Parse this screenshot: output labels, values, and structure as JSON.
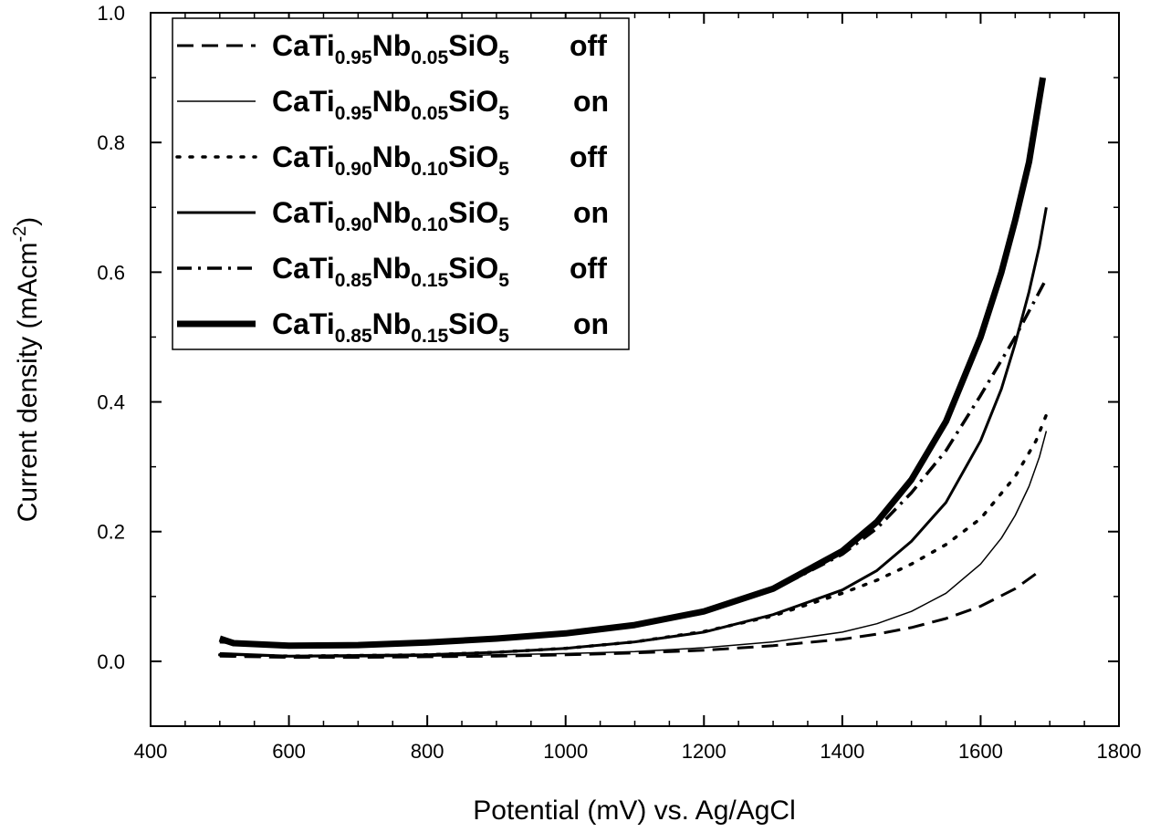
{
  "chart_data": {
    "type": "line",
    "xlabel": "Potential (mV) vs. Ag/AgCl",
    "ylabel": "Current density (mAcm",
    "ylabel_sup": "-2",
    "ylabel_close": ")",
    "xlim": [
      400,
      1800
    ],
    "ylim": [
      -0.1,
      1.0
    ],
    "xticks": [
      400,
      600,
      800,
      1000,
      1200,
      1400,
      1600,
      1800
    ],
    "yticks": [
      0.0,
      0.2,
      0.4,
      0.6,
      0.8,
      1.0
    ],
    "xtick_labels": [
      "400",
      "600",
      "800",
      "1000",
      "1200",
      "1400",
      "1600",
      "1800"
    ],
    "ytick_labels": [
      "0.0",
      "0.2",
      "0.4",
      "0.6",
      "0.8",
      "1.0"
    ],
    "grid": false,
    "legend_position": "top-left",
    "series": [
      {
        "name": "CaTi0.95Nb0.05SiO5 off",
        "legend": {
          "t1": "CaTi",
          "s1": "0.95",
          "t2": "Nb",
          "s2": "0.05",
          "t3": "SiO",
          "s3": "5",
          "state": "off"
        },
        "style": "dashed",
        "width": 3,
        "x": [
          500,
          600,
          700,
          800,
          900,
          1000,
          1100,
          1200,
          1300,
          1400,
          1450,
          1500,
          1550,
          1600,
          1650,
          1680
        ],
        "y": [
          0.008,
          0.006,
          0.006,
          0.007,
          0.008,
          0.01,
          0.013,
          0.017,
          0.024,
          0.034,
          0.042,
          0.052,
          0.066,
          0.085,
          0.112,
          0.135
        ]
      },
      {
        "name": "CaTi0.95Nb0.05SiO5 on",
        "legend": {
          "t1": "CaTi",
          "s1": "0.95",
          "t2": "Nb",
          "s2": "0.05",
          "t3": "SiO",
          "s3": "5",
          "state": "on"
        },
        "style": "solid",
        "width": 1.5,
        "x": [
          500,
          600,
          700,
          800,
          900,
          1000,
          1100,
          1200,
          1300,
          1400,
          1450,
          1500,
          1550,
          1600,
          1630,
          1650,
          1670,
          1685,
          1695
        ],
        "y": [
          0.01,
          0.007,
          0.007,
          0.008,
          0.01,
          0.012,
          0.015,
          0.021,
          0.03,
          0.045,
          0.058,
          0.077,
          0.105,
          0.15,
          0.19,
          0.225,
          0.27,
          0.315,
          0.355
        ]
      },
      {
        "name": "CaTi0.90Nb0.10SiO5 off",
        "legend": {
          "t1": "CaTi",
          "s1": "0.90",
          "t2": "Nb",
          "s2": "0.10",
          "t3": "SiO",
          "s3": "5",
          "state": "off"
        },
        "style": "dotted",
        "width": 3.5,
        "x": [
          500,
          600,
          700,
          800,
          900,
          1000,
          1100,
          1200,
          1300,
          1400,
          1450,
          1500,
          1550,
          1600,
          1650,
          1680,
          1695
        ],
        "y": [
          0.01,
          0.008,
          0.009,
          0.01,
          0.014,
          0.02,
          0.03,
          0.046,
          0.07,
          0.105,
          0.125,
          0.15,
          0.18,
          0.22,
          0.285,
          0.34,
          0.38
        ]
      },
      {
        "name": "CaTi0.90Nb0.10SiO5 on",
        "legend": {
          "t1": "CaTi",
          "s1": "0.90",
          "t2": "Nb",
          "s2": "0.10",
          "t3": "SiO",
          "s3": "5",
          "state": "on"
        },
        "style": "solid",
        "width": 3,
        "x": [
          500,
          600,
          700,
          800,
          900,
          1000,
          1100,
          1200,
          1300,
          1400,
          1450,
          1500,
          1550,
          1600,
          1630,
          1650,
          1670,
          1685,
          1695
        ],
        "y": [
          0.012,
          0.008,
          0.009,
          0.01,
          0.014,
          0.02,
          0.03,
          0.045,
          0.072,
          0.11,
          0.14,
          0.185,
          0.245,
          0.34,
          0.42,
          0.49,
          0.57,
          0.64,
          0.7
        ]
      },
      {
        "name": "CaTi0.85Nb0.15SiO5 off",
        "legend": {
          "t1": "CaTi",
          "s1": "0.85",
          "t2": "Nb",
          "s2": "0.15",
          "t3": "SiO",
          "s3": "5",
          "state": "off"
        },
        "style": "dashdot",
        "width": 3.5,
        "x": [
          500,
          600,
          700,
          800,
          900,
          1000,
          1100,
          1200,
          1300,
          1400,
          1450,
          1500,
          1550,
          1600,
          1650,
          1680,
          1695
        ],
        "y": [
          0.03,
          0.025,
          0.026,
          0.03,
          0.036,
          0.044,
          0.056,
          0.076,
          0.11,
          0.165,
          0.205,
          0.26,
          0.325,
          0.41,
          0.5,
          0.56,
          0.59
        ]
      },
      {
        "name": "CaTi0.85Nb0.15SiO5 on",
        "legend": {
          "t1": "CaTi",
          "s1": "0.85",
          "t2": "Nb",
          "s2": "0.15",
          "t3": "SiO",
          "s3": "5",
          "state": "on"
        },
        "style": "solid",
        "width": 7,
        "x": [
          500,
          520,
          600,
          700,
          800,
          900,
          1000,
          1100,
          1200,
          1300,
          1400,
          1450,
          1500,
          1550,
          1600,
          1630,
          1650,
          1670,
          1690
        ],
        "y": [
          0.035,
          0.028,
          0.024,
          0.025,
          0.029,
          0.035,
          0.043,
          0.056,
          0.077,
          0.112,
          0.17,
          0.215,
          0.28,
          0.37,
          0.5,
          0.6,
          0.68,
          0.77,
          0.9
        ]
      }
    ]
  }
}
